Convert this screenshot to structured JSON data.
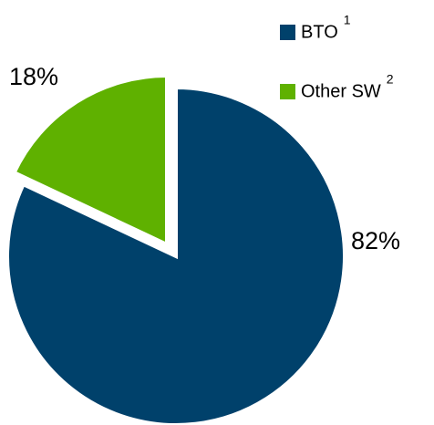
{
  "chart_data": {
    "type": "pie",
    "categories": [
      "BTO",
      "Other SW"
    ],
    "legend_notes": [
      "1",
      "2"
    ],
    "values": [
      82,
      18
    ],
    "value_labels": [
      "82%",
      "18%"
    ],
    "colors": [
      "#00416b",
      "#5fb100"
    ]
  }
}
